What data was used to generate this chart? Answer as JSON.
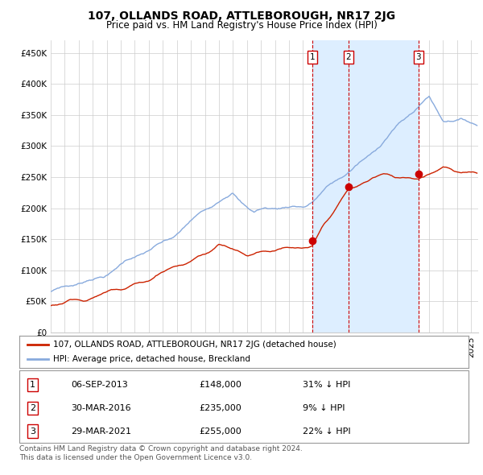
{
  "title": "107, OLLANDS ROAD, ATTLEBOROUGH, NR17 2JG",
  "subtitle": "Price paid vs. HM Land Registry's House Price Index (HPI)",
  "ylabel_ticks": [
    "£0",
    "£50K",
    "£100K",
    "£150K",
    "£200K",
    "£250K",
    "£300K",
    "£350K",
    "£400K",
    "£450K"
  ],
  "ytick_values": [
    0,
    50000,
    100000,
    150000,
    200000,
    250000,
    300000,
    350000,
    400000,
    450000
  ],
  "ylim": [
    0,
    470000
  ],
  "xlim_start": 1995.0,
  "xlim_end": 2025.5,
  "sale_dates": [
    2013.68,
    2016.24,
    2021.24
  ],
  "sale_prices": [
    148000,
    235000,
    255000
  ],
  "sale_labels": [
    "1",
    "2",
    "3"
  ],
  "vline_color": "#cc0000",
  "shade_color": "#ddeeff",
  "sale_marker_color": "#cc0000",
  "hpi_line_color": "#88aadd",
  "price_line_color": "#cc2200",
  "background_color": "#ffffff",
  "grid_color": "#cccccc",
  "legend_items": [
    {
      "label": "107, OLLANDS ROAD, ATTLEBOROUGH, NR17 2JG (detached house)",
      "color": "#cc2200"
    },
    {
      "label": "HPI: Average price, detached house, Breckland",
      "color": "#88aadd"
    }
  ],
  "table_rows": [
    {
      "num": "1",
      "date": "06-SEP-2013",
      "price": "£148,000",
      "hpi": "31% ↓ HPI"
    },
    {
      "num": "2",
      "date": "30-MAR-2016",
      "price": "£235,000",
      "hpi": "9% ↓ HPI"
    },
    {
      "num": "3",
      "date": "29-MAR-2021",
      "price": "£255,000",
      "hpi": "22% ↓ HPI"
    }
  ],
  "footnote": "Contains HM Land Registry data © Crown copyright and database right 2024.\nThis data is licensed under the Open Government Licence v3.0.",
  "title_fontsize": 10,
  "subtitle_fontsize": 8.5,
  "tick_fontsize": 7.5,
  "label_fontsize": 8
}
